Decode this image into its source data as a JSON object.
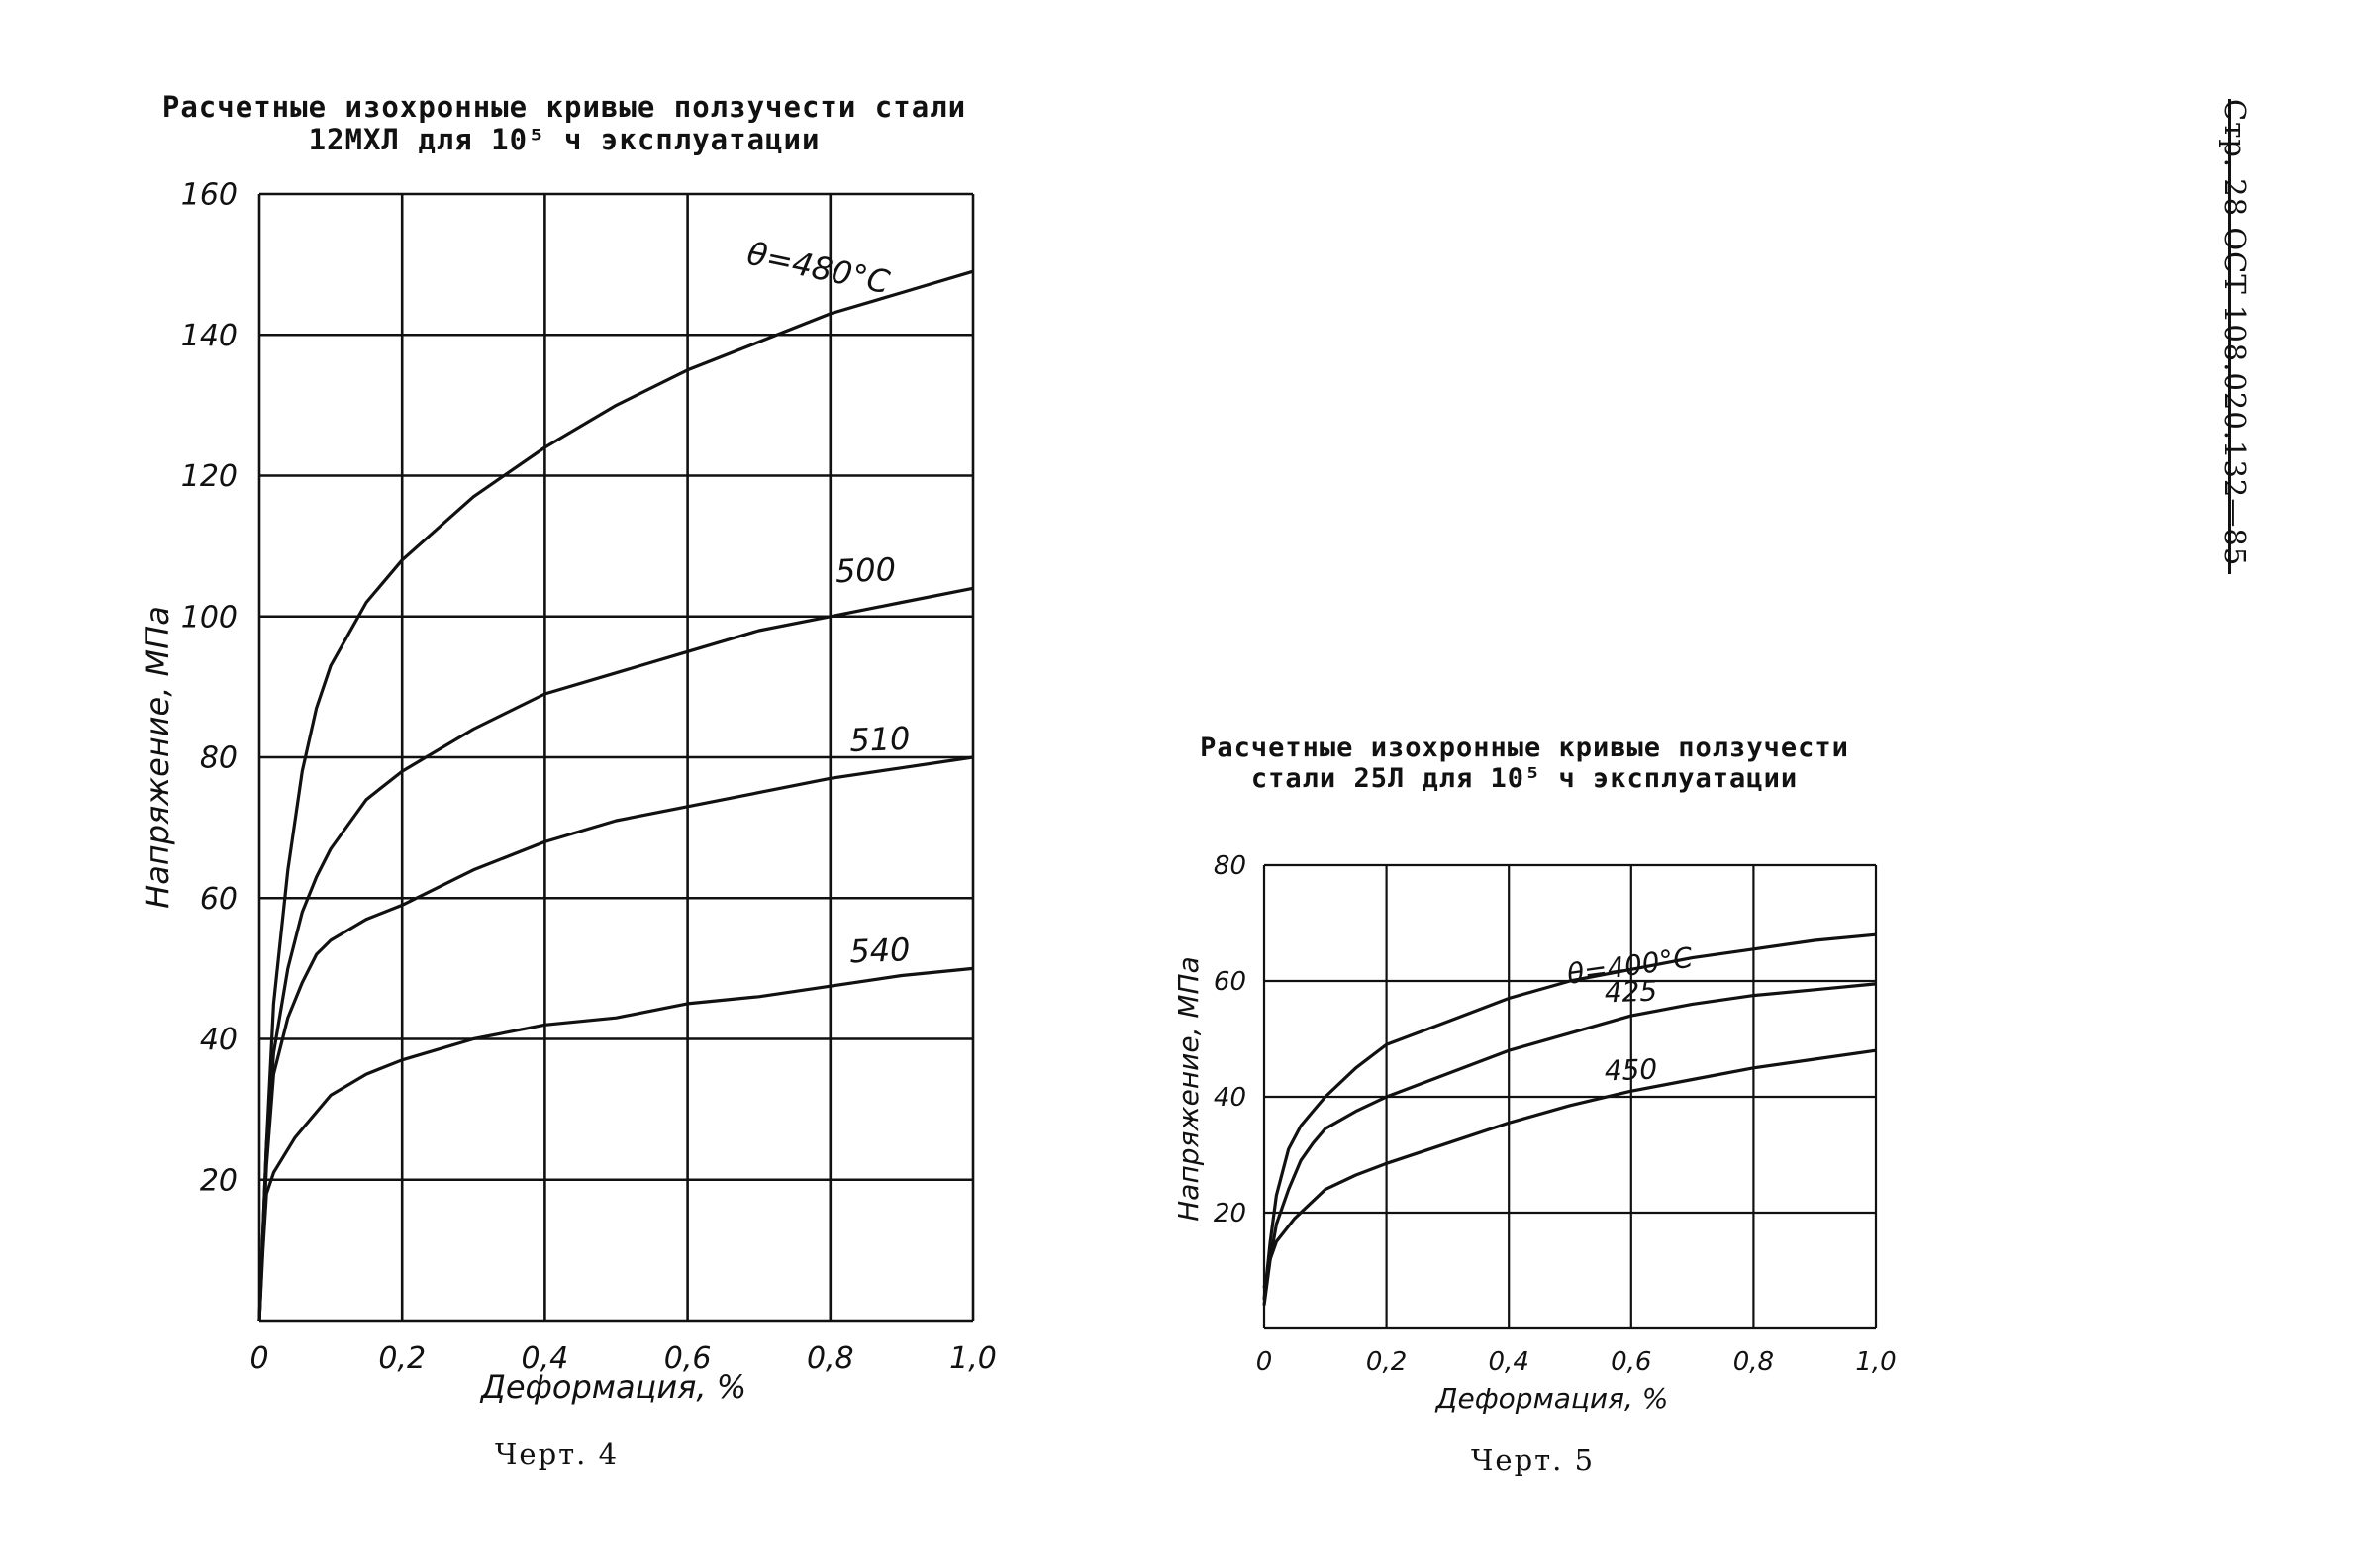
{
  "page_header": "Стр. 28 ОСТ 108.020.132—85",
  "chart_data": [
    {
      "type": "line",
      "title": "Расчетные изохронные кривые ползучести стали",
      "subtitle": "12МХЛ для 10⁵ ч эксплуатации",
      "caption": "Черт. 4",
      "xlabel": "Деформация, %",
      "ylabel": "Напряжение, МПа",
      "xlim": [
        0,
        1.0
      ],
      "ylim": [
        0,
        160
      ],
      "x_ticks": [
        "0",
        "0,2",
        "0,4",
        "0,6",
        "0,8",
        "1,0"
      ],
      "y_ticks": [
        "20",
        "40",
        "60",
        "80",
        "100",
        "120",
        "140",
        "160"
      ],
      "grid": true,
      "series": [
        {
          "name": "θ=480°C",
          "points": [
            [
              0,
              0
            ],
            [
              0.01,
              25
            ],
            [
              0.02,
              45
            ],
            [
              0.04,
              64
            ],
            [
              0.06,
              78
            ],
            [
              0.08,
              87
            ],
            [
              0.1,
              93
            ],
            [
              0.15,
              102
            ],
            [
              0.2,
              108
            ],
            [
              0.3,
              117
            ],
            [
              0.4,
              124
            ],
            [
              0.5,
              130
            ],
            [
              0.6,
              135
            ],
            [
              0.7,
              139
            ],
            [
              0.8,
              143
            ],
            [
              0.9,
              146
            ],
            [
              1.0,
              149
            ]
          ]
        },
        {
          "name": "500",
          "points": [
            [
              0,
              0
            ],
            [
              0.01,
              25
            ],
            [
              0.02,
              38
            ],
            [
              0.04,
              50
            ],
            [
              0.06,
              58
            ],
            [
              0.08,
              63
            ],
            [
              0.1,
              67
            ],
            [
              0.15,
              74
            ],
            [
              0.2,
              78
            ],
            [
              0.3,
              84
            ],
            [
              0.4,
              89
            ],
            [
              0.5,
              92
            ],
            [
              0.6,
              95
            ],
            [
              0.7,
              98
            ],
            [
              0.8,
              100
            ],
            [
              0.9,
              102
            ],
            [
              1.0,
              104
            ]
          ]
        },
        {
          "name": "510",
          "points": [
            [
              0,
              0
            ],
            [
              0.01,
              22
            ],
            [
              0.02,
              35
            ],
            [
              0.04,
              43
            ],
            [
              0.06,
              48
            ],
            [
              0.08,
              52
            ],
            [
              0.1,
              54
            ],
            [
              0.15,
              57
            ],
            [
              0.2,
              59
            ],
            [
              0.3,
              64
            ],
            [
              0.4,
              68
            ],
            [
              0.5,
              71
            ],
            [
              0.6,
              73
            ],
            [
              0.7,
              75
            ],
            [
              0.8,
              77
            ],
            [
              0.9,
              78.5
            ],
            [
              1.0,
              80
            ]
          ]
        },
        {
          "name": "540",
          "points": [
            [
              0,
              0
            ],
            [
              0.005,
              10
            ],
            [
              0.01,
              18
            ],
            [
              0.02,
              21
            ],
            [
              0.05,
              26
            ],
            [
              0.1,
              32
            ],
            [
              0.15,
              35
            ],
            [
              0.2,
              37
            ],
            [
              0.3,
              40
            ],
            [
              0.4,
              42
            ],
            [
              0.5,
              43
            ],
            [
              0.6,
              45
            ],
            [
              0.7,
              46
            ],
            [
              0.8,
              47.5
            ],
            [
              0.9,
              49
            ],
            [
              1.0,
              50
            ]
          ]
        }
      ]
    },
    {
      "type": "line",
      "title": "Расчетные изохронные кривые ползучести",
      "subtitle": "стали 25Л для 10⁵ ч эксплуатации",
      "caption": "Черт. 5",
      "xlabel": "Деформация, %",
      "ylabel": "Напряжение, МПа",
      "xlim": [
        0,
        1.0
      ],
      "ylim": [
        0,
        80
      ],
      "x_ticks": [
        "0",
        "0,2",
        "0,4",
        "0,6",
        "0,8",
        "1,0"
      ],
      "y_ticks": [
        "20",
        "40",
        "60",
        "80"
      ],
      "grid": true,
      "series": [
        {
          "name": "θ=400°C",
          "points": [
            [
              0,
              5
            ],
            [
              0.01,
              15
            ],
            [
              0.02,
              23
            ],
            [
              0.04,
              31
            ],
            [
              0.06,
              35
            ],
            [
              0.08,
              37.5
            ],
            [
              0.1,
              40
            ],
            [
              0.15,
              45
            ],
            [
              0.2,
              49
            ],
            [
              0.3,
              53
            ],
            [
              0.4,
              57
            ],
            [
              0.5,
              60
            ],
            [
              0.6,
              62
            ],
            [
              0.7,
              64
            ],
            [
              0.8,
              65.5
            ],
            [
              0.9,
              67
            ],
            [
              1.0,
              68
            ]
          ]
        },
        {
          "name": "425",
          "points": [
            [
              0,
              4
            ],
            [
              0.01,
              12
            ],
            [
              0.02,
              18
            ],
            [
              0.04,
              24
            ],
            [
              0.06,
              29
            ],
            [
              0.08,
              32
            ],
            [
              0.1,
              34.5
            ],
            [
              0.15,
              37.5
            ],
            [
              0.2,
              40
            ],
            [
              0.3,
              44
            ],
            [
              0.4,
              48
            ],
            [
              0.5,
              51
            ],
            [
              0.6,
              54
            ],
            [
              0.7,
              56
            ],
            [
              0.8,
              57.5
            ],
            [
              0.9,
              58.5
            ],
            [
              1.0,
              59.5
            ]
          ]
        },
        {
          "name": "450",
          "points": [
            [
              0,
              7
            ],
            [
              0.01,
              12
            ],
            [
              0.02,
              15
            ],
            [
              0.05,
              19
            ],
            [
              0.1,
              24
            ],
            [
              0.15,
              26.5
            ],
            [
              0.2,
              28.5
            ],
            [
              0.3,
              32
            ],
            [
              0.4,
              35.5
            ],
            [
              0.5,
              38.5
            ],
            [
              0.6,
              41
            ],
            [
              0.7,
              43
            ],
            [
              0.8,
              45
            ],
            [
              0.9,
              46.5
            ],
            [
              1.0,
              48
            ]
          ]
        }
      ]
    }
  ]
}
